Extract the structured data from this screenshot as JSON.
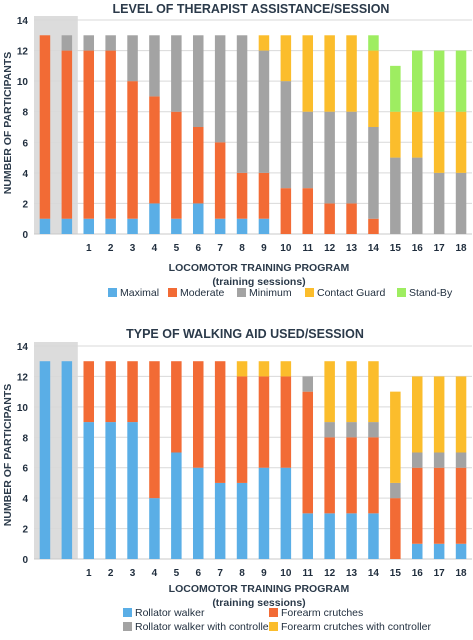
{
  "chart_data": [
    {
      "type": "bar",
      "stacked": true,
      "title": "LEVEL OF THERAPIST ASSISTANCE/SESSION",
      "xlabel": "LOCOMOTOR TRAINING PROGRAM",
      "xlabel_sub": "(training sessions)",
      "ylabel": "NUMBER OF PARTICIPANTS",
      "ylim": [
        0,
        14
      ],
      "yticks": [
        "0",
        "2",
        "4",
        "6",
        "8",
        "10",
        "12",
        "14"
      ],
      "categories": [
        "",
        "",
        "1",
        "2",
        "3",
        "4",
        "5",
        "6",
        "7",
        "8",
        "9",
        "10",
        "11",
        "12",
        "13",
        "14",
        "15",
        "16",
        "17",
        "18"
      ],
      "baseline_shaded": true,
      "legend_position": "bottom",
      "series": [
        {
          "name": "Maximal",
          "color": "#5aaee6",
          "values": [
            1,
            1,
            1,
            1,
            1,
            2,
            1,
            2,
            1,
            1,
            1,
            0,
            0,
            0,
            0,
            0,
            0,
            0,
            0,
            0
          ]
        },
        {
          "name": "Moderate",
          "color": "#f26b35",
          "values": [
            12,
            11,
            11,
            11,
            9,
            7,
            7,
            5,
            5,
            3,
            3,
            3,
            3,
            2,
            2,
            1,
            0,
            0,
            0,
            0
          ]
        },
        {
          "name": "Minimum",
          "color": "#a3a3a3",
          "values": [
            0,
            1,
            1,
            1,
            3,
            4,
            5,
            6,
            7,
            9,
            8,
            7,
            5,
            6,
            6,
            6,
            5,
            5,
            4,
            4
          ]
        },
        {
          "name": "Contact Guard",
          "color": "#fbbd2c",
          "values": [
            0,
            0,
            0,
            0,
            0,
            0,
            0,
            0,
            0,
            0,
            1,
            3,
            5,
            5,
            5,
            5,
            3,
            3,
            4,
            4
          ]
        },
        {
          "name": "Stand-By",
          "color": "#9eed61",
          "values": [
            0,
            0,
            0,
            0,
            0,
            0,
            0,
            0,
            0,
            0,
            0,
            0,
            0,
            0,
            0,
            1,
            3,
            4,
            4,
            4
          ]
        }
      ]
    },
    {
      "type": "bar",
      "stacked": true,
      "title": "TYPE OF WALKING AID USED/SESSION",
      "xlabel": "LOCOMOTOR TRAINING PROGRAM",
      "xlabel_sub": "(training sessions)",
      "ylabel": "NUMBER OF PARTICIPANTS",
      "ylim": [
        0,
        14
      ],
      "yticks": [
        "0",
        "2",
        "4",
        "6",
        "8",
        "10",
        "12",
        "14"
      ],
      "categories": [
        "",
        "",
        "1",
        "2",
        "3",
        "4",
        "5",
        "6",
        "7",
        "8",
        "9",
        "10",
        "11",
        "12",
        "13",
        "14",
        "15",
        "16",
        "17",
        "18"
      ],
      "baseline_shaded": true,
      "legend_position": "bottom",
      "series": [
        {
          "name": "Rollator walker",
          "color": "#5aaee6",
          "values": [
            13,
            13,
            9,
            9,
            9,
            4,
            7,
            6,
            5,
            5,
            6,
            6,
            3,
            3,
            3,
            3,
            0,
            1,
            1,
            1
          ]
        },
        {
          "name": "Forearm crutches",
          "color": "#f26b35",
          "values": [
            0,
            0,
            4,
            4,
            4,
            9,
            6,
            7,
            8,
            7,
            6,
            6,
            8,
            5,
            5,
            5,
            4,
            5,
            5,
            5
          ]
        },
        {
          "name": "Rollator walker with controller",
          "color": "#a3a3a3",
          "values": [
            0,
            0,
            0,
            0,
            0,
            0,
            0,
            0,
            0,
            0,
            0,
            0,
            1,
            1,
            1,
            1,
            1,
            1,
            1,
            1
          ]
        },
        {
          "name": "Forearm crutches with controller",
          "color": "#fbbd2c",
          "values": [
            0,
            0,
            0,
            0,
            0,
            0,
            0,
            0,
            0,
            1,
            1,
            1,
            0,
            4,
            4,
            4,
            6,
            5,
            5,
            5
          ]
        }
      ]
    }
  ]
}
